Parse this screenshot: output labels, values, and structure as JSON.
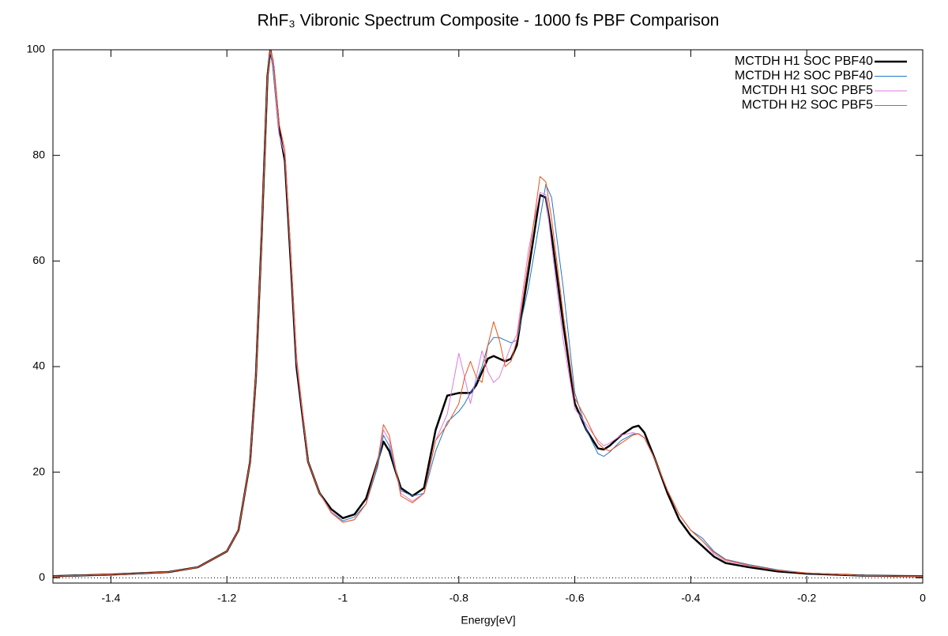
{
  "chart_data": {
    "type": "line",
    "title": "RhF₃ Vibronic Spectrum Composite - 1000 fs PBF Comparison",
    "xlabel": "Energy[eV]",
    "x": [
      -1.5,
      -1.4,
      -1.3,
      -1.25,
      -1.2,
      -1.18,
      -1.16,
      -1.15,
      -1.14,
      -1.13,
      -1.125,
      -1.12,
      -1.11,
      -1.1,
      -1.09,
      -1.08,
      -1.06,
      -1.04,
      -1.02,
      -1.0,
      -0.98,
      -0.96,
      -0.94,
      -0.93,
      -0.92,
      -0.9,
      -0.88,
      -0.86,
      -0.84,
      -0.82,
      -0.8,
      -0.79,
      -0.78,
      -0.77,
      -0.76,
      -0.75,
      -0.74,
      -0.73,
      -0.72,
      -0.71,
      -0.7,
      -0.68,
      -0.66,
      -0.65,
      -0.64,
      -0.62,
      -0.6,
      -0.58,
      -0.56,
      -0.55,
      -0.54,
      -0.52,
      -0.5,
      -0.49,
      -0.48,
      -0.46,
      -0.44,
      -0.42,
      -0.4,
      -0.38,
      -0.36,
      -0.34,
      -0.3,
      -0.25,
      -0.2,
      -0.1,
      0
    ],
    "series": [
      {
        "name": "MCTDH H1 SOC PBF40",
        "color": "#000000",
        "width": 2.5,
        "values": [
          0.3,
          0.6,
          1.1,
          2,
          5,
          9,
          22,
          38,
          65,
          95,
          100,
          97,
          85,
          79,
          60,
          40,
          22,
          16,
          13,
          11.3,
          12,
          15,
          22,
          25.8,
          24,
          17,
          15.5,
          17,
          28,
          34.5,
          35,
          35,
          35,
          36.5,
          39,
          41.5,
          42,
          41.5,
          41,
          41.5,
          44,
          58,
          72.5,
          72,
          65,
          48,
          33,
          28,
          24.5,
          24.3,
          25,
          27,
          28.5,
          28.8,
          27.5,
          22,
          16,
          11,
          8,
          6,
          4,
          2.8,
          2,
          1.2,
          0.8,
          0.4,
          0.3
        ]
      },
      {
        "name": "MCTDH H2 SOC PBF40",
        "color": "#1f78c8",
        "width": 1,
        "values": [
          0.3,
          0.6,
          1.1,
          2,
          5,
          9,
          22,
          38,
          65,
          95,
          100,
          96,
          84,
          80,
          61,
          41,
          22,
          16,
          12.5,
          10.8,
          11.5,
          14,
          21,
          27,
          25,
          16.5,
          15.5,
          16,
          24,
          29.5,
          31.5,
          33,
          35,
          37,
          40,
          44,
          45.5,
          45.5,
          45,
          44.5,
          45,
          55,
          68,
          74.5,
          72,
          55,
          35,
          28,
          23.5,
          23,
          23.8,
          26,
          27.2,
          27.3,
          26.5,
          22,
          16.5,
          12,
          9,
          7.5,
          5,
          3.5,
          2.5,
          1.5,
          0.9,
          0.4,
          0.3
        ]
      },
      {
        "name": "MCTDH H1 SOC PBF5",
        "color": "#e07ae0",
        "width": 1,
        "values": [
          0.3,
          0.6,
          1.1,
          2,
          5,
          9,
          22,
          38,
          65,
          95,
          100,
          97,
          84,
          80,
          61,
          41,
          22,
          16,
          12.5,
          10.5,
          11,
          14,
          22,
          28,
          26,
          16,
          14.5,
          16,
          26,
          31,
          42.5,
          38,
          33,
          38,
          43,
          39,
          37,
          38,
          41,
          44,
          46,
          62,
          73,
          72.5,
          63,
          45,
          32,
          29,
          26,
          25,
          25.5,
          27,
          27.5,
          27.2,
          26.5,
          22,
          16.5,
          12,
          9,
          7,
          4.5,
          3.2,
          2.3,
          1.4,
          0.9,
          0.4,
          0.3
        ]
      },
      {
        "name": "MCTDH H2 SOC PBF5",
        "color": "#e8551a",
        "width": 1,
        "values": [
          0.3,
          0.6,
          1.1,
          2,
          5,
          9,
          22,
          38,
          65,
          95,
          100,
          98,
          86,
          81,
          62,
          42,
          22,
          16,
          12.3,
          10.5,
          11,
          14,
          22,
          29,
          27,
          15.5,
          14.2,
          16,
          26,
          29,
          33,
          38,
          41,
          38,
          37,
          44,
          48.5,
          45,
          40,
          41,
          45,
          60,
          76,
          75,
          68,
          50,
          34,
          30,
          25.5,
          24.5,
          24,
          25.5,
          27,
          27.3,
          26.5,
          22,
          16.5,
          12,
          9,
          7,
          4.8,
          3.4,
          2.4,
          1.4,
          0.9,
          0.4,
          0.3
        ]
      }
    ],
    "xlim": [
      -1.5,
      0
    ],
    "ylim": [
      -1,
      100
    ],
    "xticks": [
      -1.4,
      -1.2,
      -1,
      -0.8,
      -0.6,
      -0.4,
      -0.2,
      0
    ],
    "yticks": [
      0,
      20,
      40,
      60,
      80,
      100
    ],
    "legend": "top-right",
    "zero_line": true
  }
}
